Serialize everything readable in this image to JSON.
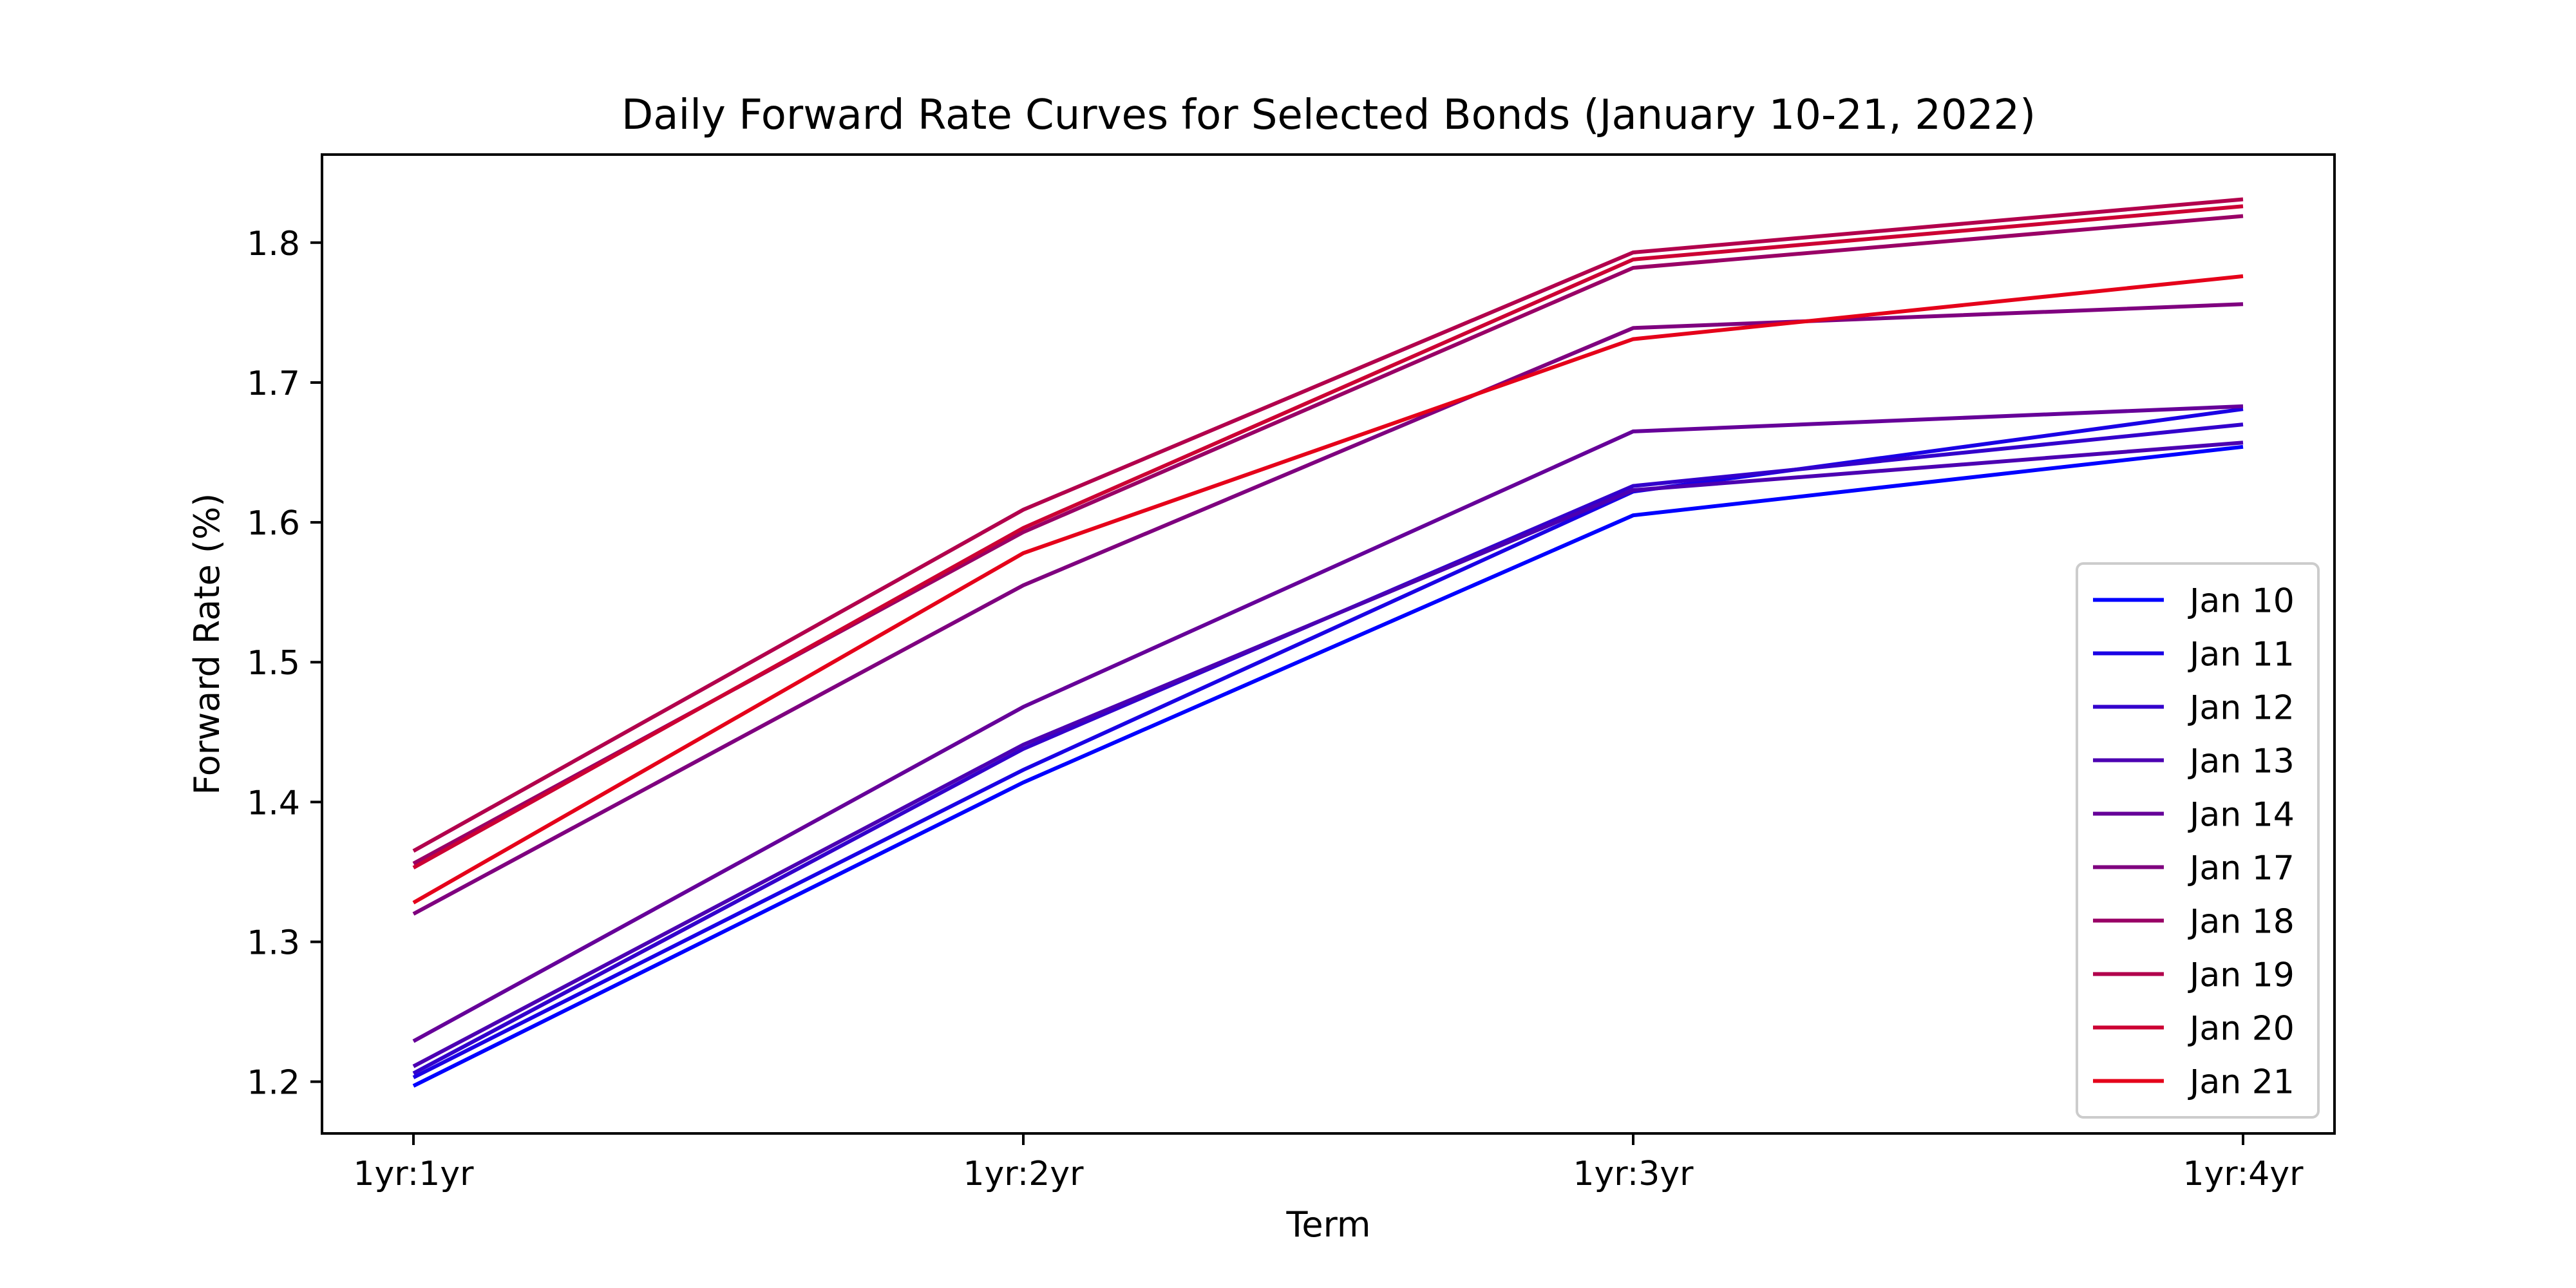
{
  "chart_data": {
    "type": "line",
    "title": "Daily Forward Rate Curves for Selected Bonds (January 10-21, 2022)",
    "xlabel": "Term",
    "ylabel": "Forward Rate (%)",
    "categories": [
      "1yr:1yr",
      "1yr:2yr",
      "1yr:3yr",
      "1yr:4yr"
    ],
    "ylim": [
      1.163,
      1.863
    ],
    "yticks": [
      1.2,
      1.3,
      1.4,
      1.5,
      1.6,
      1.7,
      1.8
    ],
    "grid": false,
    "legend_position": "lower-right",
    "series": [
      {
        "name": "Jan 10",
        "color": "#0000ff",
        "values": [
          1.197,
          1.414,
          1.605,
          1.654
        ]
      },
      {
        "name": "Jan 11",
        "color": "#1a00e5",
        "values": [
          1.203,
          1.423,
          1.622,
          1.681
        ]
      },
      {
        "name": "Jan 12",
        "color": "#3300cc",
        "values": [
          1.206,
          1.438,
          1.626,
          1.67
        ]
      },
      {
        "name": "Jan 13",
        "color": "#4c00b2",
        "values": [
          1.211,
          1.441,
          1.623,
          1.657
        ]
      },
      {
        "name": "Jan 14",
        "color": "#660099",
        "values": [
          1.229,
          1.468,
          1.665,
          1.683
        ]
      },
      {
        "name": "Jan 17",
        "color": "#7f007f",
        "values": [
          1.32,
          1.555,
          1.739,
          1.756
        ]
      },
      {
        "name": "Jan 18",
        "color": "#990066",
        "values": [
          1.356,
          1.593,
          1.782,
          1.819
        ]
      },
      {
        "name": "Jan 19",
        "color": "#b2004c",
        "values": [
          1.365,
          1.609,
          1.793,
          1.831
        ]
      },
      {
        "name": "Jan 20",
        "color": "#cc0033",
        "values": [
          1.353,
          1.596,
          1.788,
          1.826
        ]
      },
      {
        "name": "Jan 21",
        "color": "#e5001a",
        "values": [
          1.328,
          1.578,
          1.731,
          1.776
        ]
      }
    ]
  }
}
